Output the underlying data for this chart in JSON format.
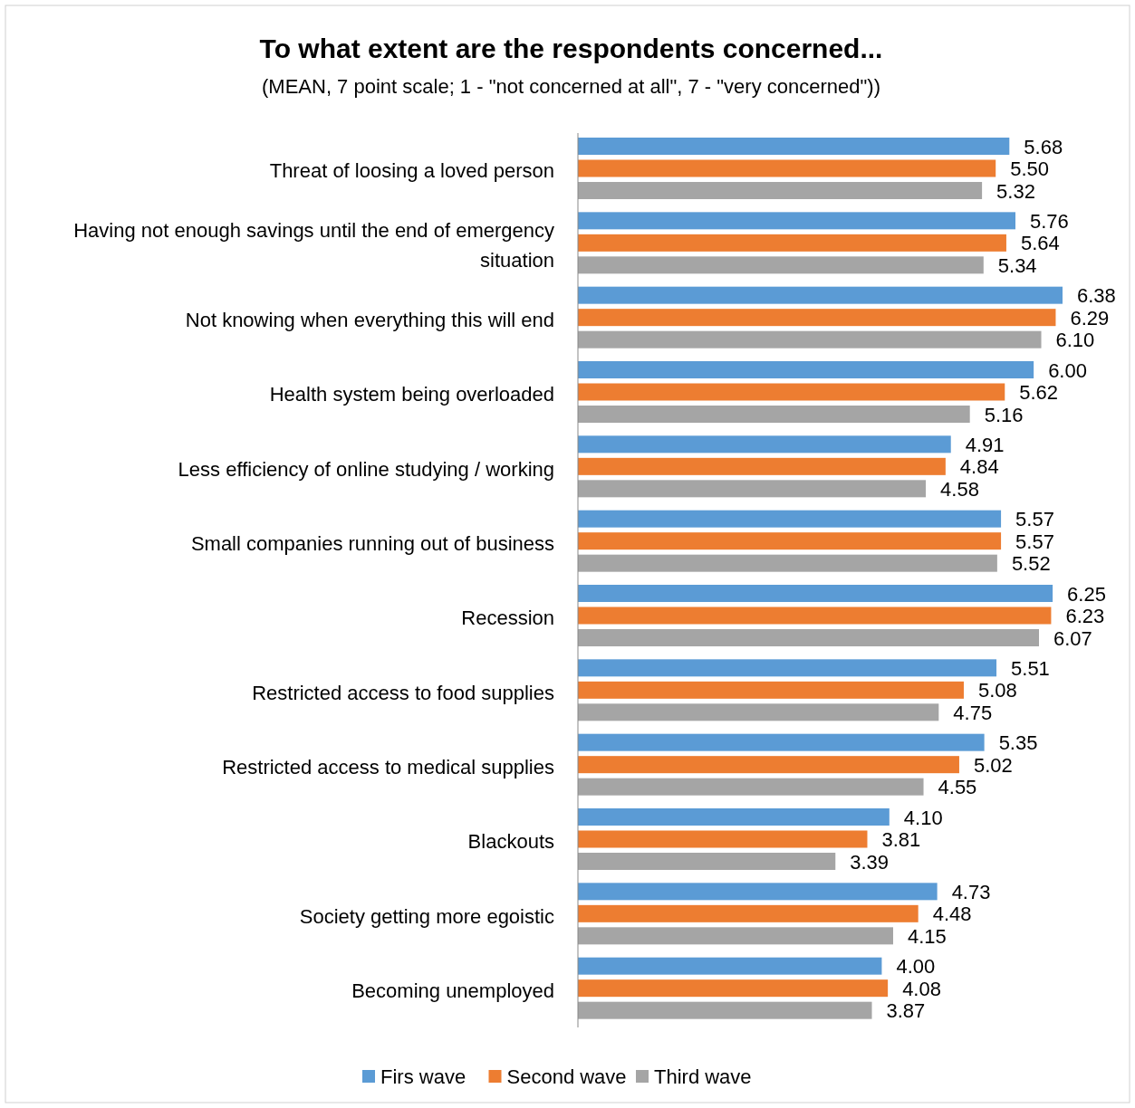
{
  "chart_data": {
    "type": "bar",
    "orientation": "horizontal",
    "title": "To what extent are the respondents concerned...",
    "subtitle": "(MEAN, 7 point scale; 1 - \"not concerned at all\", 7 - \"very concerned\"))",
    "categories": [
      "Threat of loosing a loved person",
      "Having not enough savings until the end of emergency situation",
      "Not knowing when everything this will end",
      "Health system being overloaded",
      "Less efficiency of online studying  / working",
      "Small companies running out of business",
      "Recession",
      "Restricted access to food supplies",
      "Restricted access to medical supplies",
      "Blackouts",
      "Society getting more egoistic",
      "Becoming unemployed"
    ],
    "series": [
      {
        "name": "Firs wave",
        "color": "#5b9bd5",
        "values": [
          5.68,
          5.76,
          6.38,
          6.0,
          4.91,
          5.57,
          6.25,
          5.51,
          5.35,
          4.1,
          4.73,
          4.0
        ],
        "value_labels": [
          "5.68",
          "5.76",
          "6.38",
          "6.00",
          "4.91",
          "5.57",
          "6.25",
          "5.51",
          "5.35",
          "4.10",
          "4.73",
          "4.00"
        ]
      },
      {
        "name": "Second wave",
        "color": "#ed7d31",
        "values": [
          5.5,
          5.64,
          6.29,
          5.62,
          4.84,
          5.57,
          6.23,
          5.08,
          5.02,
          3.81,
          4.48,
          4.08
        ],
        "value_labels": [
          "5.50",
          "5.64",
          "6.29",
          "5.62",
          "4.84",
          "5.57",
          "6.23",
          "5.08",
          "5.02",
          "3.81",
          "4.48",
          "4.08"
        ]
      },
      {
        "name": "Third wave",
        "color": "#a5a5a5",
        "values": [
          5.32,
          5.34,
          6.1,
          5.16,
          4.58,
          5.52,
          6.07,
          4.75,
          4.55,
          3.39,
          4.15,
          3.87
        ],
        "value_labels": [
          "5.32",
          "5.34",
          "6.10",
          "5.16",
          "4.58",
          "5.52",
          "6.07",
          "4.75",
          "4.55",
          "3.39",
          "4.15",
          "3.87"
        ]
      }
    ],
    "legend": "bottom",
    "tick_labels": "y"
  }
}
